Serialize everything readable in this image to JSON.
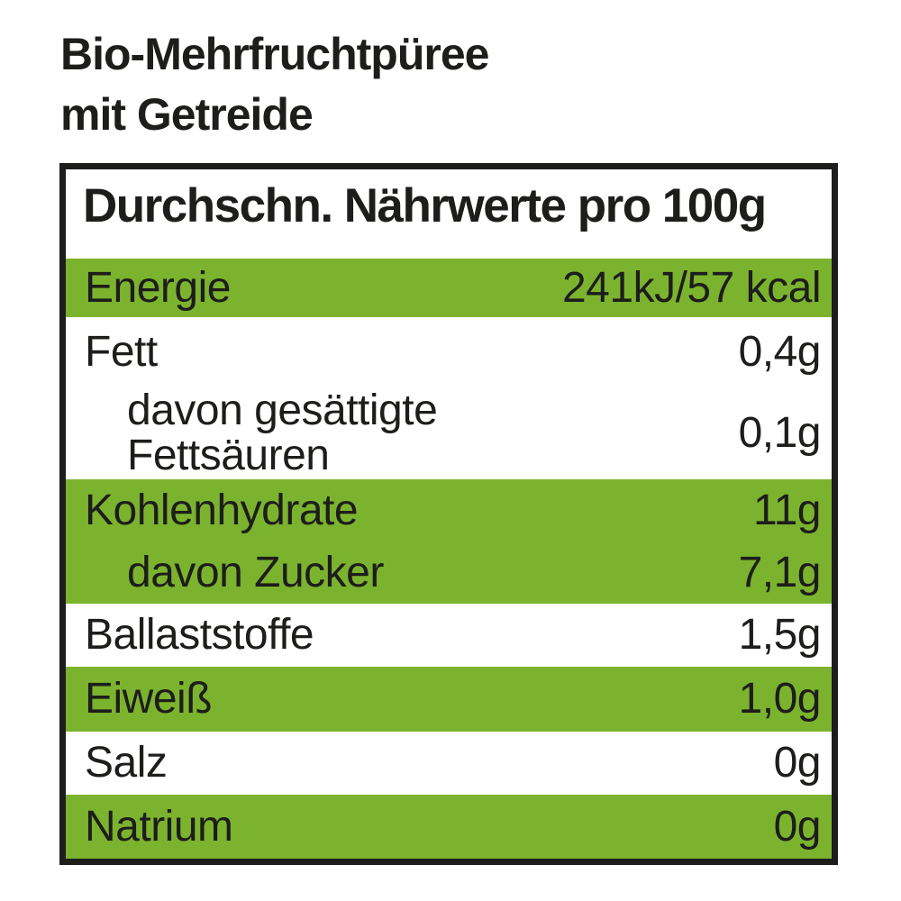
{
  "title": {
    "line1": "Bio-Mehrfruchtpüree",
    "line2": "mit Getreide"
  },
  "table": {
    "header": "Durchschn. Nährwerte pro 100g",
    "rows": [
      {
        "label": "Energie",
        "value": "241kJ/57 kcal",
        "green": true,
        "indent": false
      },
      {
        "label": "Fett",
        "value": "0,4g",
        "green": false,
        "indent": false
      },
      {
        "label": "davon gesättigte\nFettsäuren",
        "value": "0,1g",
        "green": false,
        "indent": true
      },
      {
        "label": "Kohlenhydrate",
        "value": "11g",
        "green": true,
        "indent": false
      },
      {
        "label": "davon Zucker",
        "value": "7,1g",
        "green": true,
        "indent": true
      },
      {
        "label": "Ballaststoffe",
        "value": "1,5g",
        "green": false,
        "indent": false
      },
      {
        "label": "Eiweiß",
        "value": "1,0g",
        "green": true,
        "indent": false
      },
      {
        "label": "Salz",
        "value": "0g",
        "green": false,
        "indent": false
      },
      {
        "label": "Natrium",
        "value": "0g",
        "green": true,
        "indent": false
      }
    ]
  },
  "colors": {
    "green": "#7bb32e",
    "text": "#1d1d1b",
    "border": "#1d1d1b",
    "background": "#ffffff"
  }
}
